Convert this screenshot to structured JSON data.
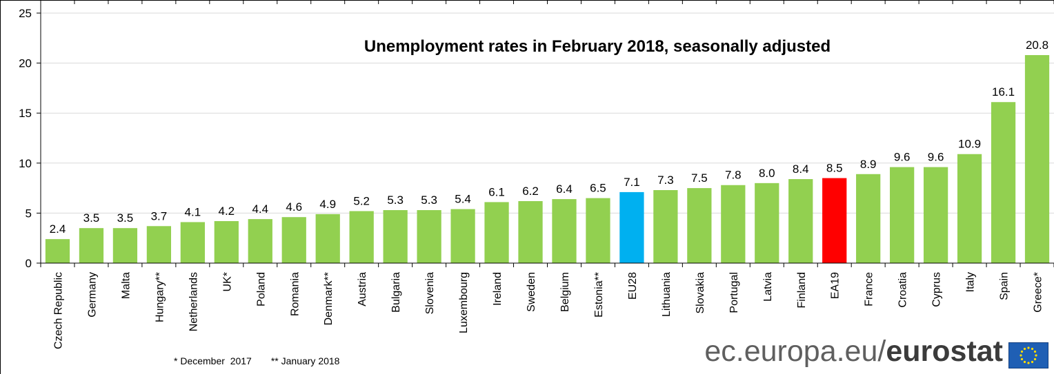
{
  "chart_data": {
    "type": "bar",
    "title": "Unemployment rates in February 2018, seasonally adjusted",
    "categories": [
      "Czech Republic",
      "Germany",
      "Malta",
      "Hungary**",
      "Netherlands",
      "UK*",
      "Poland",
      "Romania",
      "Denmark**",
      "Austria",
      "Bulgaria",
      "Slovenia",
      "Luxembourg",
      "Ireland",
      "Sweden",
      "Belgium",
      "Estonia**",
      "EU28",
      "Lithuania",
      "Slovakia",
      "Portugal",
      "Latvia",
      "Finland",
      "EA19",
      "France",
      "Croatia",
      "Cyprus",
      "Italy",
      "Spain",
      "Greece*"
    ],
    "values": [
      2.4,
      3.5,
      3.5,
      3.7,
      4.1,
      4.2,
      4.4,
      4.6,
      4.9,
      5.2,
      5.3,
      5.3,
      5.4,
      6.1,
      6.2,
      6.4,
      6.5,
      7.1,
      7.3,
      7.5,
      7.8,
      8.0,
      8.4,
      8.5,
      8.9,
      9.6,
      9.6,
      10.9,
      16.1,
      20.8
    ],
    "value_labels": [
      "2.4",
      "3.5",
      "3.5",
      "3.7",
      "4.1",
      "4.2",
      "4.4",
      "4.6",
      "4.9",
      "5.2",
      "5.3",
      "5.3",
      "5.4",
      "6.1",
      "6.2",
      "6.4",
      "6.5",
      "7.1",
      "7.3",
      "7.5",
      "7.8",
      "8.0",
      "8.4",
      "8.5",
      "8.9",
      "9.6",
      "9.6",
      "10.9",
      "16.1",
      "20.8"
    ],
    "bar_colors": {
      "default": "#92d050",
      "EU28": "#00b0f0",
      "EA19": "#ff0000"
    },
    "ylim": [
      0,
      25
    ],
    "yticks": [
      "0",
      "5",
      "10",
      "15",
      "20",
      "25"
    ],
    "grid": true,
    "xlabel": "",
    "ylabel": ""
  },
  "footnotes": [
    "* December  2017",
    "** January 2018"
  ],
  "brand": {
    "light": "ec.europa.eu/",
    "bold": "eurostat"
  },
  "colors": {
    "gridline": "#d9d9d9",
    "axis": "#000000",
    "flag_blue": "#1f5fb4",
    "flag_star": "#ffdd00"
  }
}
